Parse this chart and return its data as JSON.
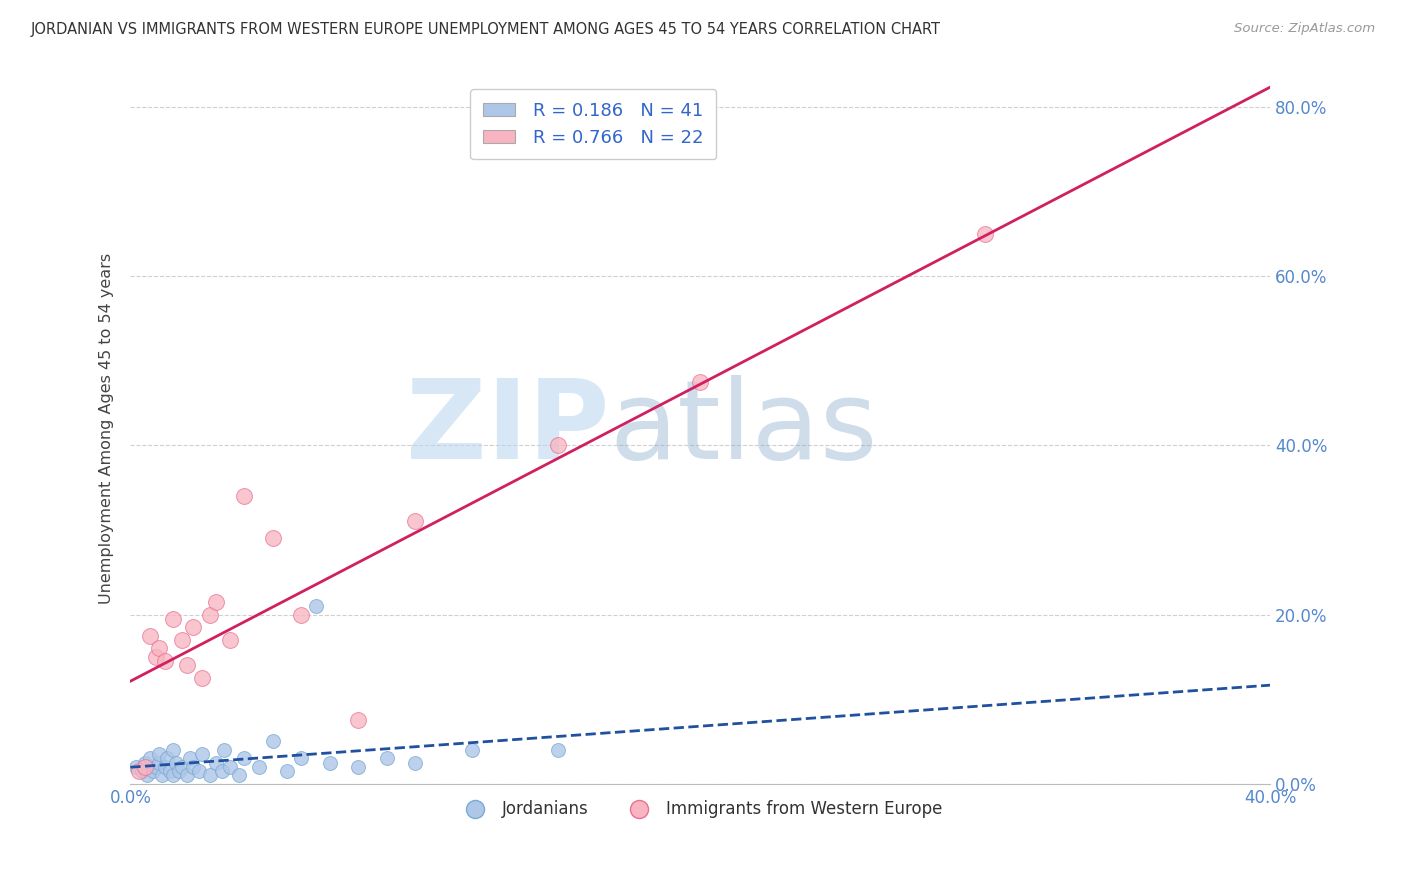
{
  "title": "JORDANIAN VS IMMIGRANTS FROM WESTERN EUROPE UNEMPLOYMENT AMONG AGES 45 TO 54 YEARS CORRELATION CHART",
  "source": "Source: ZipAtlas.com",
  "ylabel": "Unemployment Among Ages 45 to 54 years",
  "xlim": [
    0.0,
    0.4
  ],
  "ylim": [
    0.0,
    0.84
  ],
  "yticks": [
    0.0,
    0.2,
    0.4,
    0.6,
    0.8
  ],
  "ytick_labels_right": [
    "0.0%",
    "20.0%",
    "40.0%",
    "60.0%",
    "80.0%"
  ],
  "blue_color": "#aec6e8",
  "blue_edge": "#7aaad4",
  "pink_color": "#f8b4c0",
  "pink_edge": "#e87090",
  "blue_line_color": "#2050a0",
  "pink_line_color": "#d02060",
  "R_blue": 0.186,
  "N_blue": 41,
  "R_pink": 0.766,
  "N_pink": 22,
  "watermark_zip": "ZIP",
  "watermark_atlas": "atlas",
  "background_color": "#ffffff",
  "grid_color": "#d0d0d0",
  "blue_scatter_x": [
    0.002,
    0.004,
    0.005,
    0.006,
    0.007,
    0.008,
    0.009,
    0.01,
    0.01,
    0.011,
    0.012,
    0.013,
    0.014,
    0.015,
    0.015,
    0.016,
    0.017,
    0.018,
    0.02,
    0.021,
    0.022,
    0.024,
    0.025,
    0.028,
    0.03,
    0.032,
    0.033,
    0.035,
    0.038,
    0.04,
    0.045,
    0.05,
    0.055,
    0.06,
    0.065,
    0.07,
    0.08,
    0.09,
    0.1,
    0.12,
    0.15
  ],
  "blue_scatter_y": [
    0.02,
    0.015,
    0.025,
    0.01,
    0.03,
    0.015,
    0.02,
    0.025,
    0.035,
    0.01,
    0.02,
    0.03,
    0.015,
    0.01,
    0.04,
    0.025,
    0.015,
    0.02,
    0.01,
    0.03,
    0.02,
    0.015,
    0.035,
    0.01,
    0.025,
    0.015,
    0.04,
    0.02,
    0.01,
    0.03,
    0.02,
    0.05,
    0.015,
    0.03,
    0.21,
    0.025,
    0.02,
    0.03,
    0.025,
    0.04,
    0.04
  ],
  "pink_scatter_x": [
    0.003,
    0.005,
    0.007,
    0.009,
    0.01,
    0.012,
    0.015,
    0.018,
    0.02,
    0.022,
    0.025,
    0.028,
    0.03,
    0.035,
    0.04,
    0.05,
    0.06,
    0.08,
    0.1,
    0.15,
    0.2,
    0.3
  ],
  "pink_scatter_y": [
    0.015,
    0.02,
    0.175,
    0.15,
    0.16,
    0.145,
    0.195,
    0.17,
    0.14,
    0.185,
    0.125,
    0.2,
    0.215,
    0.17,
    0.34,
    0.29,
    0.2,
    0.075,
    0.31,
    0.4,
    0.475,
    0.65
  ],
  "legend_label_blue": "Jordanians",
  "legend_label_pink": "Immigrants from Western Europe"
}
